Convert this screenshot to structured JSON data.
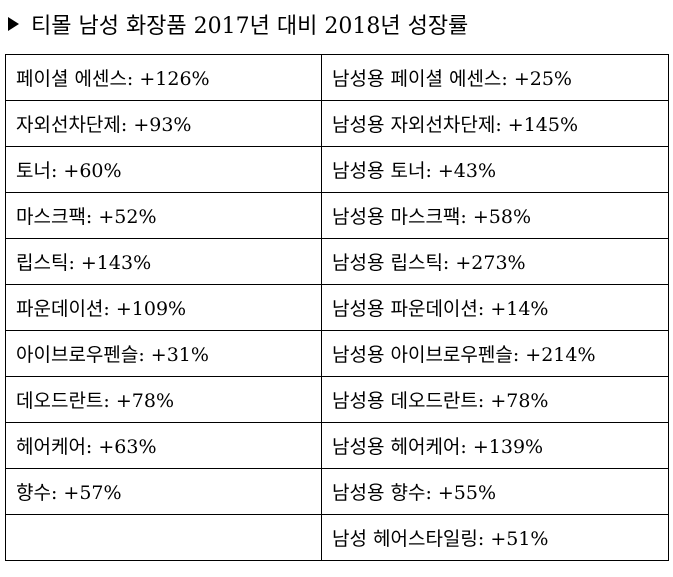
{
  "title": "티몰 남성 화장품 2017년 대비 2018년 성장률",
  "rows": [
    {
      "left": "페이셜 에센스:  +126%",
      "right": "남성용 페이셜 에센스:  +25%"
    },
    {
      "left": "자외선차단제:  +93%",
      "right": "남성용 자외선차단제:  +145%"
    },
    {
      "left": "토너:  +60%",
      "right": "남성용 토너:  +43%"
    },
    {
      "left": "마스크팩:  +52%",
      "right": "남성용 마스크팩:  +58%"
    },
    {
      "left": "립스틱:  +143%",
      "right": "남성용 립스틱:  +273%"
    },
    {
      "left": "파운데이션:  +109%",
      "right": "남성용 파운데이션:  +14%"
    },
    {
      "left": "아이브로우펜슬:  +31%",
      "right": "남성용 아이브로우펜슬:  +214%"
    },
    {
      "left": "데오드란트:  +78%",
      "right": "남성용 데오드란트:  +78%"
    },
    {
      "left": "헤어케어:  +63%",
      "right": "남성용 헤어케어:  +139%"
    },
    {
      "left": "향수:  +57%",
      "right": "남성용 향수:  +55%"
    },
    {
      "left": "",
      "right": "남성 헤어스타일링:  +51%"
    }
  ]
}
